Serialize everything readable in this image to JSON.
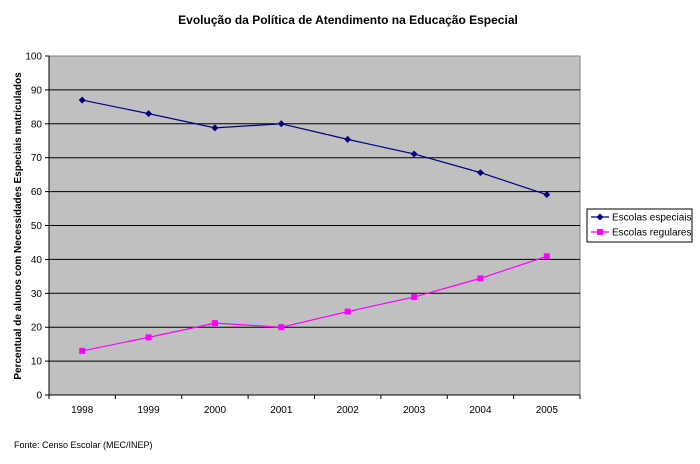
{
  "chart_data": {
    "type": "line",
    "title": "Evolução da Política de Atendimento na Educação Especial",
    "xlabel": "",
    "ylabel": "Percentual de alunos com Necessidades Especiais matriculados",
    "categories": [
      "1998",
      "1999",
      "2000",
      "2001",
      "2002",
      "2003",
      "2004",
      "2005"
    ],
    "ylim": [
      0,
      100
    ],
    "yticks": [
      0,
      10,
      20,
      30,
      40,
      50,
      60,
      70,
      80,
      90,
      100
    ],
    "grid": true,
    "legend_position": "right",
    "series": [
      {
        "name": "Escolas especiais",
        "color": "#000080",
        "marker": "diamond",
        "values": [
          87,
          83,
          78.8,
          80,
          75.4,
          71.1,
          65.6,
          59.1
        ]
      },
      {
        "name": "Escolas regulares",
        "color": "#ff00ff",
        "marker": "square",
        "values": [
          13,
          17,
          21.2,
          20,
          24.6,
          28.9,
          34.4,
          40.9
        ]
      }
    ]
  },
  "footer": {
    "source": "Fonte: Censo Escolar (MEC/INEP)"
  }
}
